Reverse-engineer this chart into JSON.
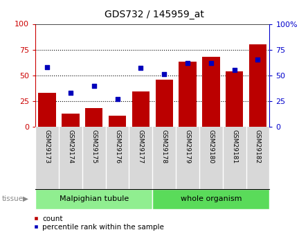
{
  "title": "GDS732 / 145959_at",
  "samples": [
    "GSM29173",
    "GSM29174",
    "GSM29175",
    "GSM29176",
    "GSM29177",
    "GSM29178",
    "GSM29179",
    "GSM29180",
    "GSM29181",
    "GSM29182"
  ],
  "counts": [
    33,
    13,
    18,
    11,
    34,
    46,
    63,
    68,
    54,
    80
  ],
  "percentiles": [
    58,
    33,
    40,
    27,
    57,
    51,
    62,
    62,
    55,
    65
  ],
  "tissue_groups": [
    {
      "label": "Malpighian tubule",
      "start": 0,
      "end": 5,
      "color": "#90EE90"
    },
    {
      "label": "whole organism",
      "start": 5,
      "end": 10,
      "color": "#5CD65C"
    }
  ],
  "ylim": [
    0,
    100
  ],
  "yticks": [
    0,
    25,
    50,
    75,
    100
  ],
  "bar_color": "#BB0000",
  "scatter_color": "#0000BB",
  "bar_width": 0.75,
  "left_axis_color": "#CC0000",
  "right_axis_color": "#0000CC",
  "tick_bg_color": "#D8D8D8",
  "plot_bg_color": "#FFFFFF",
  "tissue_color_1": "#90EE90",
  "tissue_color_2": "#5ADB5A",
  "title_fontsize": 10,
  "tick_fontsize": 6.5,
  "tissue_fontsize": 8,
  "legend_fontsize": 7.5,
  "axis_fontsize": 8
}
